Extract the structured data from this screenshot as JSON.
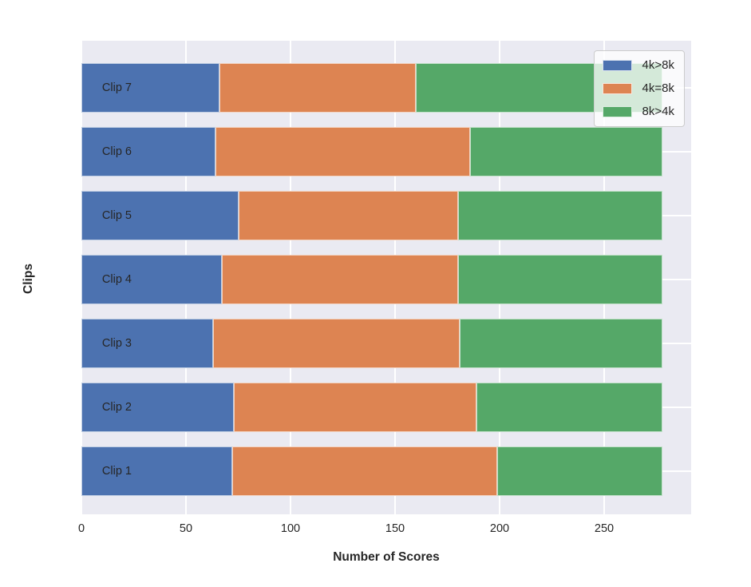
{
  "chart_data": {
    "type": "bar",
    "orientation": "horizontal",
    "stacked": true,
    "title": "",
    "xlabel": "Number of Scores",
    "ylabel": "Clips",
    "categories": [
      "Clip 7",
      "Clip 6",
      "Clip 5",
      "Clip 4",
      "Clip 3",
      "Clip 2",
      "Clip 1"
    ],
    "series": [
      {
        "name": "4k>8k",
        "color": "#4C72B0",
        "values": [
          66,
          64,
          75,
          67,
          63,
          73,
          72
        ]
      },
      {
        "name": "4k=8k",
        "color": "#DD8452",
        "values": [
          94,
          122,
          105,
          113,
          118,
          116,
          127
        ]
      },
      {
        "name": "8k>4k",
        "color": "#55A868",
        "values": [
          118,
          92,
          98,
          98,
          97,
          89,
          79
        ]
      }
    ],
    "totals_per_category": [
      278,
      278,
      278,
      278,
      278,
      278,
      278
    ],
    "x_ticks": [
      0,
      50,
      100,
      150,
      200,
      250
    ],
    "xlim": [
      0,
      291.6
    ],
    "grid": true,
    "legend_position": "upper right",
    "plot_background": "#eaeaf2",
    "grid_color": "#ffffff",
    "text_color": "#262626"
  }
}
